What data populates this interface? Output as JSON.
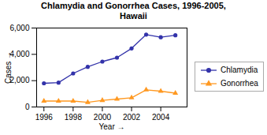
{
  "chart_data": {
    "type": "line",
    "title": "Chlamydia and Gonorrhea Cases, 1996-2005,\nHawaii",
    "x": [
      1996,
      1997,
      1998,
      1999,
      2000,
      2001,
      2002,
      2003,
      2004,
      2005
    ],
    "series": [
      {
        "name": "Chlamydia",
        "color": "#3333aa",
        "marker": "circle",
        "values": [
          1800,
          1850,
          2550,
          3050,
          3450,
          3750,
          4450,
          5500,
          5300,
          5450
        ]
      },
      {
        "name": "Gonorrhea",
        "color": "#ff9922",
        "marker": "triangle",
        "values": [
          450,
          450,
          450,
          350,
          500,
          600,
          700,
          1300,
          1200,
          1050
        ]
      }
    ],
    "xlabel": "Year",
    "ylabel": "Cases",
    "xlim": [
      1995.5,
      2005.8
    ],
    "xticks": [
      1996,
      1998,
      2000,
      2002,
      2004
    ],
    "ylim": [
      0,
      6000
    ],
    "yticks": [
      0,
      {
        "value": 2000,
        "label": "2,000"
      },
      {
        "value": 4000,
        "label": "4,000"
      },
      {
        "value": 6000,
        "label": "6,000"
      }
    ],
    "grid": false,
    "legend": "right"
  }
}
